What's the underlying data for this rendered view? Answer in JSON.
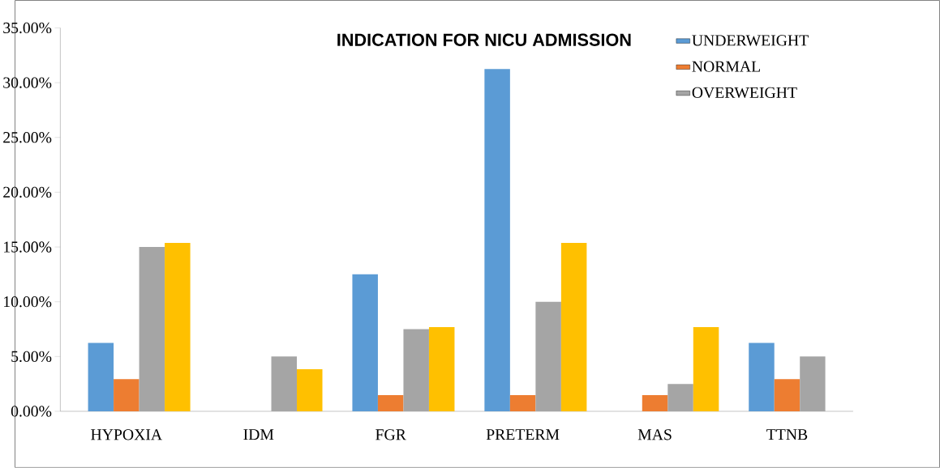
{
  "chart_data": {
    "type": "bar",
    "title": "INDICATION FOR NICU ADMISSION",
    "categories": [
      "HYPOXIA",
      "IDM",
      "FGR",
      "PRETERM",
      "MAS",
      "TTNB"
    ],
    "series": [
      {
        "name": "UNDERWEIGHT",
        "color": "#5b9bd5",
        "values": [
          6.25,
          0,
          12.5,
          31.25,
          0,
          6.25
        ]
      },
      {
        "name": "NORMAL",
        "color": "#ed7d31",
        "values": [
          2.94,
          0,
          1.47,
          1.47,
          1.47,
          2.94
        ]
      },
      {
        "name": "OVERWEIGHT",
        "color": "#a5a5a5",
        "values": [
          15,
          5,
          7.5,
          10,
          2.5,
          5
        ]
      },
      {
        "color": "#ffc000",
        "values": [
          15.38,
          3.85,
          7.69,
          15.38,
          7.69,
          0
        ]
      }
    ],
    "ylim": [
      0,
      35
    ],
    "yticks": [
      {
        "value": 0,
        "label": "0.00%"
      },
      {
        "value": 5,
        "label": "5.00%"
      },
      {
        "value": 10,
        "label": "10.00%"
      },
      {
        "value": 15,
        "label": "15.00%"
      },
      {
        "value": 20,
        "label": "20.00%"
      },
      {
        "value": 25,
        "label": "25.00%"
      },
      {
        "value": 30,
        "label": "30.00%"
      },
      {
        "value": 35,
        "label": "35.00%"
      }
    ],
    "grid": false,
    "legend": "top right"
  }
}
